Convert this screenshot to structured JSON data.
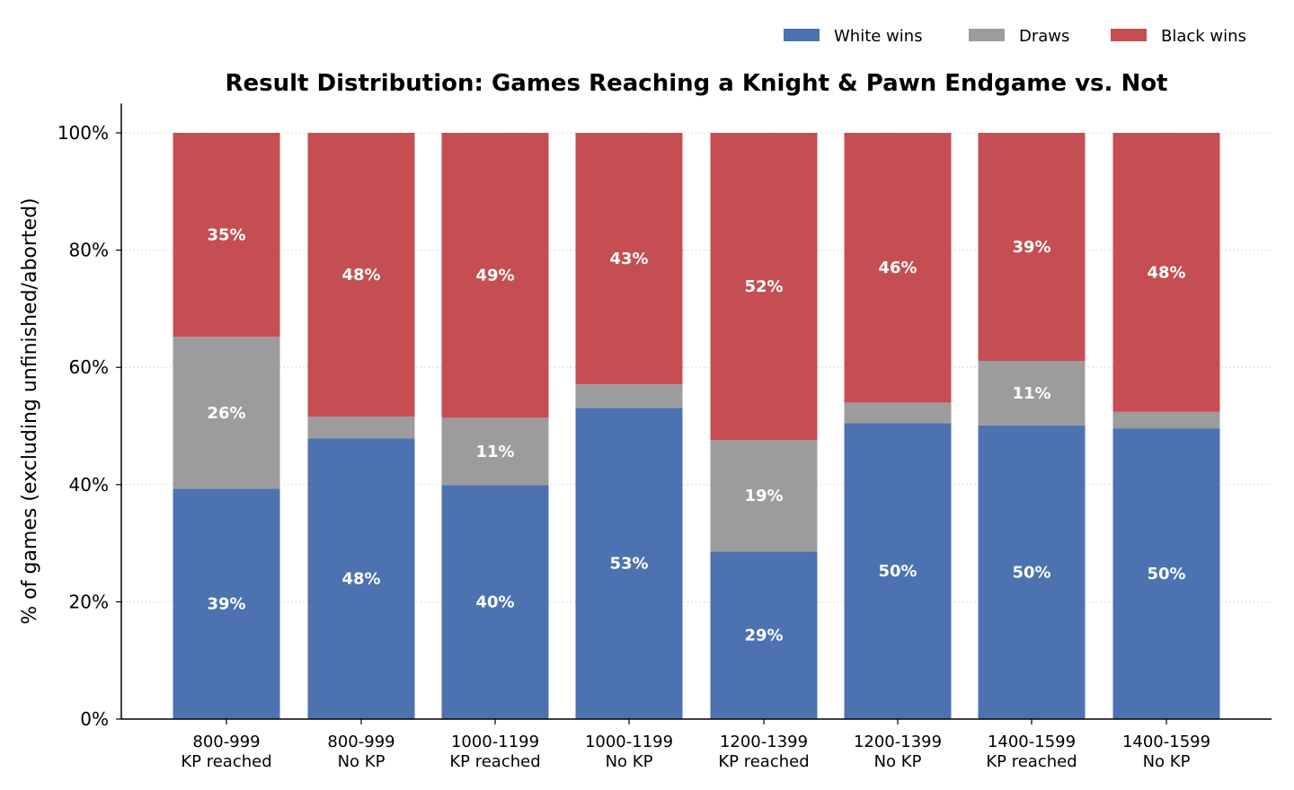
{
  "chart_data": {
    "type": "bar",
    "stacked": true,
    "title": "Result Distribution: Games Reaching a Knight & Pawn Endgame vs. Not",
    "xlabel": "",
    "ylabel": "% of games (excluding unfinished/aborted)",
    "ylim": [
      0,
      105
    ],
    "yticks": [
      "0%",
      "20%",
      "40%",
      "60%",
      "80%",
      "100%"
    ],
    "grid": "horizontal dotted",
    "legend_position": "top-right",
    "categories": [
      [
        "800-999",
        "KP reached"
      ],
      [
        "800-999",
        "No KP"
      ],
      [
        "1000-1199",
        "KP reached"
      ],
      [
        "1000-1199",
        "No KP"
      ],
      [
        "1200-1399",
        "KP reached"
      ],
      [
        "1200-1399",
        "No KP"
      ],
      [
        "1400-1599",
        "KP reached"
      ],
      [
        "1400-1599",
        "No KP"
      ]
    ],
    "series": [
      {
        "name": "White wins",
        "color": "#4c72b0",
        "values": [
          39.3,
          47.9,
          39.9,
          53.1,
          28.6,
          50.5,
          50.1,
          49.6
        ]
      },
      {
        "name": "Draws",
        "color": "#9c9c9c",
        "values": [
          25.9,
          3.7,
          11.5,
          4.0,
          19.0,
          3.5,
          11.0,
          2.8
        ]
      },
      {
        "name": "Black wins",
        "color": "#c44e52",
        "values": [
          34.8,
          48.4,
          48.6,
          42.9,
          52.4,
          46.0,
          38.9,
          47.6
        ]
      }
    ],
    "data_labels": [
      [
        "39%",
        "26%",
        "35%"
      ],
      [
        "48%",
        "",
        "48%"
      ],
      [
        "40%",
        "11%",
        "49%"
      ],
      [
        "53%",
        "",
        "43%"
      ],
      [
        "29%",
        "19%",
        "52%"
      ],
      [
        "50%",
        "",
        "46%"
      ],
      [
        "50%",
        "11%",
        "39%"
      ],
      [
        "50%",
        "",
        "48%"
      ]
    ]
  }
}
